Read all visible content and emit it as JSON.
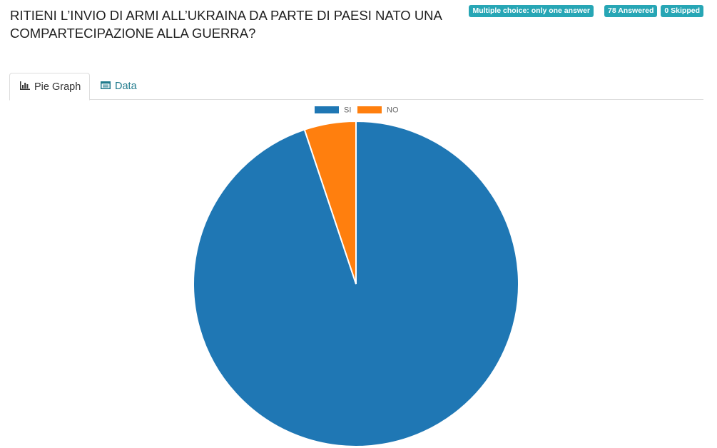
{
  "question": {
    "title": "RITIENI L’INVIO DI ARMI ALL’UKRAINA DA PARTE DI PAESI NATO UNA COMPARTECIPAZIONE ALLA GUERRA?"
  },
  "badges": {
    "type": "Multiple choice: only one answer",
    "answered": "78 Answered",
    "skipped": "0 Skipped"
  },
  "tabs": [
    {
      "label": "Pie Graph",
      "icon": "bar-chart-icon",
      "active": true
    },
    {
      "label": "Data",
      "icon": "table-icon",
      "active": false
    }
  ],
  "colors": {
    "accent": "#27a6b5",
    "link": "#1f7a8c",
    "si": "#1f77b4",
    "no": "#ff7f0e"
  },
  "chart_data": {
    "type": "pie",
    "categories": [
      "SI",
      "NO"
    ],
    "values": [
      74,
      4
    ],
    "legend": "top-center"
  }
}
